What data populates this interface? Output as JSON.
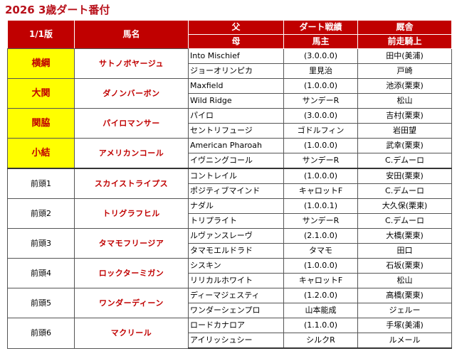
{
  "title": "2026 3歳ダート番付",
  "columns": {
    "rank": "1/1版",
    "horse": "馬名",
    "sire": "父",
    "dam": "母",
    "record": "ダート戦績",
    "owner": "馬主",
    "trainer": "厩舎",
    "jockey": "前走騎上"
  },
  "entries": [
    {
      "rank": "横綱",
      "horse": "サトノボヤージュ",
      "sire": "Into Mischief",
      "dam": "ジョーオリンピカ",
      "record": "(3.0.0.0)",
      "owner": "里見治",
      "trainer": "田中(美浦)",
      "jockey": "戸崎"
    },
    {
      "rank": "大関",
      "horse": "ダノンバーボン",
      "sire": "Maxfield",
      "dam": "Wild Ridge",
      "record": "(1.0.0.0)",
      "owner": "サンデーR",
      "trainer": "池添(栗東)",
      "jockey": "松山"
    },
    {
      "rank": "関脇",
      "horse": "パイロマンサー",
      "sire": "パイロ",
      "dam": "セントリフュージ",
      "record": "(3.0.0.0)",
      "owner": "ゴドルフィン",
      "trainer": "吉村(栗東)",
      "jockey": "岩田望"
    },
    {
      "rank": "小結",
      "horse": "アメリカンコール",
      "sire": "American Pharoah",
      "dam": "イヴニングコール",
      "record": "(1.0.0.0)",
      "owner": "サンデーR",
      "trainer": "武幸(栗東)",
      "jockey": "C.デムーロ"
    },
    {
      "rank": "前頭1",
      "horse": "スカイストライプス",
      "sire": "コントレイル",
      "dam": "ポジティブマインド",
      "record": "(1.0.0.0)",
      "owner": "キャロットF",
      "trainer": "安田(栗東)",
      "jockey": "C.デムーロ"
    },
    {
      "rank": "前頭2",
      "horse": "トリグラフヒル",
      "sire": "ナダル",
      "dam": "トリプライト",
      "record": "(1.0.0.1)",
      "owner": "サンデーR",
      "trainer": "大久保(栗東)",
      "jockey": "C.デムーロ"
    },
    {
      "rank": "前頭3",
      "horse": "タマモフリージア",
      "sire": "ルヴァンスレーヴ",
      "dam": "タマモエルドラド",
      "record": "(2.1.0.0)",
      "owner": "タマモ",
      "trainer": "大橋(栗東)",
      "jockey": "田口"
    },
    {
      "rank": "前頭4",
      "horse": "ロックターミガン",
      "sire": "シスキン",
      "dam": "リリカルホワイト",
      "record": "(1.0.0.0)",
      "owner": "キャロットF",
      "trainer": "石坂(栗東)",
      "jockey": "松山"
    },
    {
      "rank": "前頭5",
      "horse": "ワンダーディーン",
      "sire": "ディーマジェスティ",
      "dam": "ワンダーシェンプロ",
      "record": "(1.2.0.0)",
      "owner": "山本能成",
      "trainer": "高橋(栗東)",
      "jockey": "ジェルー"
    },
    {
      "rank": "前頭6",
      "horse": "マクリール",
      "sire": "ロードカナロア",
      "dam": "アイリッシュシー",
      "record": "(1.1.0.0)",
      "owner": "シルクR",
      "trainer": "手塚(美浦)",
      "jockey": "ルメール"
    }
  ]
}
